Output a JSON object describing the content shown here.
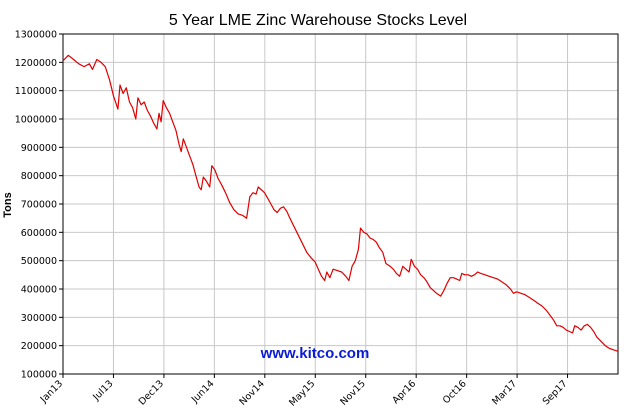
{
  "chart_data": {
    "type": "line",
    "title": "5 Year LME Zinc Warehouse Stocks Level",
    "ylabel": "Tons",
    "xlabel": "",
    "watermark": "www.kitco.com",
    "ylim": [
      100000,
      1300000
    ],
    "y_ticks": [
      100000,
      200000,
      300000,
      400000,
      500000,
      600000,
      700000,
      800000,
      900000,
      1000000,
      1100000,
      1200000,
      1300000
    ],
    "x_tick_labels": [
      "Jan13",
      "Jul13",
      "Dec13",
      "Jun14",
      "Nov14",
      "May15",
      "Nov15",
      "Apr16",
      "Oct16",
      "Mar17",
      "Sep17"
    ],
    "grid": true,
    "line_color": "#e00000",
    "series": [
      {
        "name": "",
        "points": [
          [
            0,
            1205000
          ],
          [
            0.5,
            1225000
          ],
          [
            1,
            1210000
          ],
          [
            1.5,
            1195000
          ],
          [
            2,
            1185000
          ],
          [
            2.5,
            1195000
          ],
          [
            2.8,
            1175000
          ],
          [
            3.2,
            1210000
          ],
          [
            3.6,
            1200000
          ],
          [
            4,
            1185000
          ],
          [
            4.4,
            1140000
          ],
          [
            4.8,
            1080000
          ],
          [
            5.2,
            1035000
          ],
          [
            5.4,
            1120000
          ],
          [
            5.7,
            1090000
          ],
          [
            6,
            1110000
          ],
          [
            6.3,
            1060000
          ],
          [
            6.6,
            1040000
          ],
          [
            6.9,
            1000000
          ],
          [
            7.1,
            1075000
          ],
          [
            7.4,
            1050000
          ],
          [
            7.7,
            1060000
          ],
          [
            8,
            1030000
          ],
          [
            8.3,
            1010000
          ],
          [
            8.6,
            985000
          ],
          [
            8.9,
            965000
          ],
          [
            9.1,
            1020000
          ],
          [
            9.3,
            990000
          ],
          [
            9.5,
            1065000
          ],
          [
            9.8,
            1040000
          ],
          [
            10.1,
            1020000
          ],
          [
            10.4,
            990000
          ],
          [
            10.7,
            960000
          ],
          [
            11,
            910000
          ],
          [
            11.2,
            885000
          ],
          [
            11.4,
            930000
          ],
          [
            11.7,
            900000
          ],
          [
            12,
            870000
          ],
          [
            12.3,
            840000
          ],
          [
            12.6,
            800000
          ],
          [
            12.9,
            760000
          ],
          [
            13.1,
            750000
          ],
          [
            13.3,
            795000
          ],
          [
            13.6,
            780000
          ],
          [
            13.9,
            760000
          ],
          [
            14.1,
            835000
          ],
          [
            14.4,
            820000
          ],
          [
            14.7,
            790000
          ],
          [
            15,
            770000
          ],
          [
            15.4,
            740000
          ],
          [
            15.8,
            705000
          ],
          [
            16.2,
            680000
          ],
          [
            16.6,
            665000
          ],
          [
            17,
            660000
          ],
          [
            17.4,
            650000
          ],
          [
            17.7,
            725000
          ],
          [
            18,
            740000
          ],
          [
            18.3,
            735000
          ],
          [
            18.5,
            760000
          ],
          [
            18.8,
            750000
          ],
          [
            19.1,
            740000
          ],
          [
            19.4,
            720000
          ],
          [
            19.7,
            700000
          ],
          [
            20,
            680000
          ],
          [
            20.3,
            670000
          ],
          [
            20.6,
            685000
          ],
          [
            20.9,
            690000
          ],
          [
            21.2,
            675000
          ],
          [
            21.5,
            650000
          ],
          [
            21.9,
            620000
          ],
          [
            22.3,
            590000
          ],
          [
            22.7,
            560000
          ],
          [
            23.1,
            530000
          ],
          [
            23.5,
            510000
          ],
          [
            23.9,
            495000
          ],
          [
            24.2,
            470000
          ],
          [
            24.5,
            445000
          ],
          [
            24.8,
            430000
          ],
          [
            25,
            460000
          ],
          [
            25.3,
            440000
          ],
          [
            25.6,
            470000
          ],
          [
            26,
            465000
          ],
          [
            26.4,
            460000
          ],
          [
            26.8,
            445000
          ],
          [
            27.1,
            430000
          ],
          [
            27.4,
            480000
          ],
          [
            27.7,
            500000
          ],
          [
            28,
            540000
          ],
          [
            28.2,
            615000
          ],
          [
            28.5,
            600000
          ],
          [
            28.8,
            595000
          ],
          [
            29.1,
            580000
          ],
          [
            29.4,
            575000
          ],
          [
            29.7,
            565000
          ],
          [
            30,
            545000
          ],
          [
            30.3,
            530000
          ],
          [
            30.6,
            490000
          ],
          [
            31,
            480000
          ],
          [
            31.3,
            470000
          ],
          [
            31.6,
            455000
          ],
          [
            31.9,
            445000
          ],
          [
            32.2,
            480000
          ],
          [
            32.5,
            470000
          ],
          [
            32.8,
            460000
          ],
          [
            33,
            505000
          ],
          [
            33.3,
            480000
          ],
          [
            33.6,
            470000
          ],
          [
            33.9,
            450000
          ],
          [
            34.2,
            440000
          ],
          [
            34.5,
            425000
          ],
          [
            34.8,
            405000
          ],
          [
            35.1,
            395000
          ],
          [
            35.4,
            385000
          ],
          [
            35.8,
            375000
          ],
          [
            36.1,
            395000
          ],
          [
            36.4,
            420000
          ],
          [
            36.7,
            440000
          ],
          [
            37,
            440000
          ],
          [
            37.3,
            435000
          ],
          [
            37.6,
            430000
          ],
          [
            37.8,
            455000
          ],
          [
            38.1,
            450000
          ],
          [
            38.4,
            450000
          ],
          [
            38.7,
            445000
          ],
          [
            39,
            450000
          ],
          [
            39.3,
            460000
          ],
          [
            39.6,
            455000
          ],
          [
            40,
            450000
          ],
          [
            40.4,
            445000
          ],
          [
            40.8,
            440000
          ],
          [
            41.2,
            435000
          ],
          [
            41.6,
            425000
          ],
          [
            42,
            415000
          ],
          [
            42.4,
            400000
          ],
          [
            42.7,
            385000
          ],
          [
            43,
            390000
          ],
          [
            43.4,
            385000
          ],
          [
            43.8,
            380000
          ],
          [
            44.2,
            370000
          ],
          [
            44.6,
            360000
          ],
          [
            45,
            350000
          ],
          [
            45.4,
            340000
          ],
          [
            45.8,
            325000
          ],
          [
            46.2,
            305000
          ],
          [
            46.5,
            290000
          ],
          [
            46.8,
            270000
          ],
          [
            47.1,
            270000
          ],
          [
            47.4,
            265000
          ],
          [
            47.7,
            255000
          ],
          [
            48,
            250000
          ],
          [
            48.3,
            245000
          ],
          [
            48.5,
            270000
          ],
          [
            48.8,
            265000
          ],
          [
            49.1,
            255000
          ],
          [
            49.4,
            270000
          ],
          [
            49.7,
            275000
          ],
          [
            50,
            265000
          ],
          [
            50.3,
            250000
          ],
          [
            50.6,
            230000
          ],
          [
            51,
            215000
          ],
          [
            51.4,
            200000
          ],
          [
            51.8,
            190000
          ],
          [
            52.2,
            185000
          ],
          [
            52.6,
            180000
          ]
        ]
      }
    ]
  }
}
